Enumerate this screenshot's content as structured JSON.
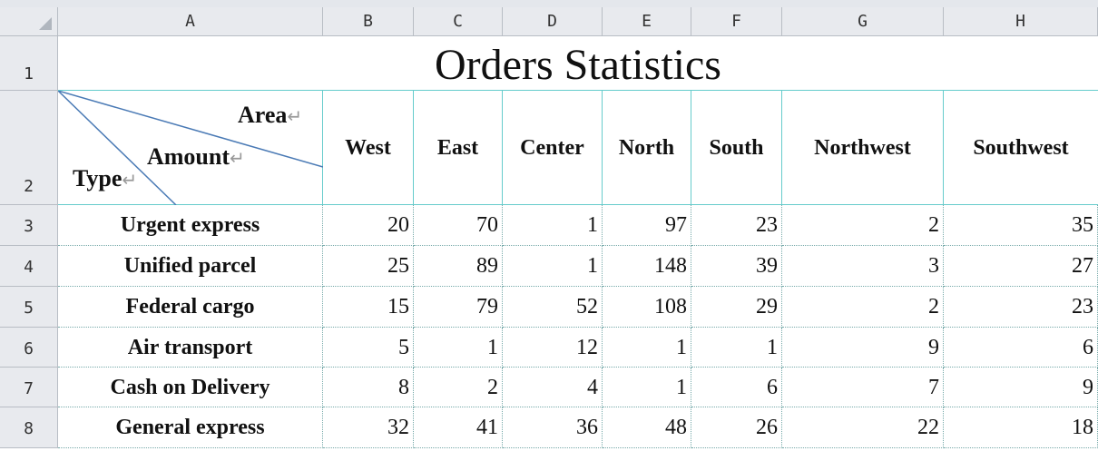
{
  "columns": [
    "A",
    "B",
    "C",
    "D",
    "E",
    "F",
    "G",
    "H"
  ],
  "rows": [
    "1",
    "2",
    "3",
    "4",
    "5",
    "6",
    "7",
    "8"
  ],
  "title": "Orders Statistics",
  "diagonal_header": {
    "area": "Area",
    "amount": "Amount",
    "type": "Type",
    "return_mark": "↵"
  },
  "regions": [
    "West",
    "East",
    "Center",
    "North",
    "South",
    "Northwest",
    "Southwest"
  ],
  "table": [
    {
      "type": "Urgent express",
      "values": [
        "20",
        "70",
        "1",
        "97",
        "23",
        "2",
        "35"
      ]
    },
    {
      "type": "Unified parcel",
      "values": [
        "25",
        "89",
        "1",
        "148",
        "39",
        "3",
        "27"
      ]
    },
    {
      "type": "Federal cargo",
      "values": [
        "15",
        "79",
        "52",
        "108",
        "29",
        "2",
        "23"
      ]
    },
    {
      "type": "Air transport",
      "values": [
        "5",
        "1",
        "12",
        "1",
        "1",
        "9",
        "6"
      ]
    },
    {
      "type": "Cash on Delivery",
      "values": [
        "8",
        "2",
        "4",
        "1",
        "6",
        "7",
        "9"
      ]
    },
    {
      "type": "General express",
      "values": [
        "32",
        "41",
        "36",
        "48",
        "26",
        "22",
        "18"
      ]
    }
  ],
  "colors": {
    "header_bg": "#e8eaee",
    "grid": "#66cccc",
    "diagonal": "#4a7ab5"
  }
}
